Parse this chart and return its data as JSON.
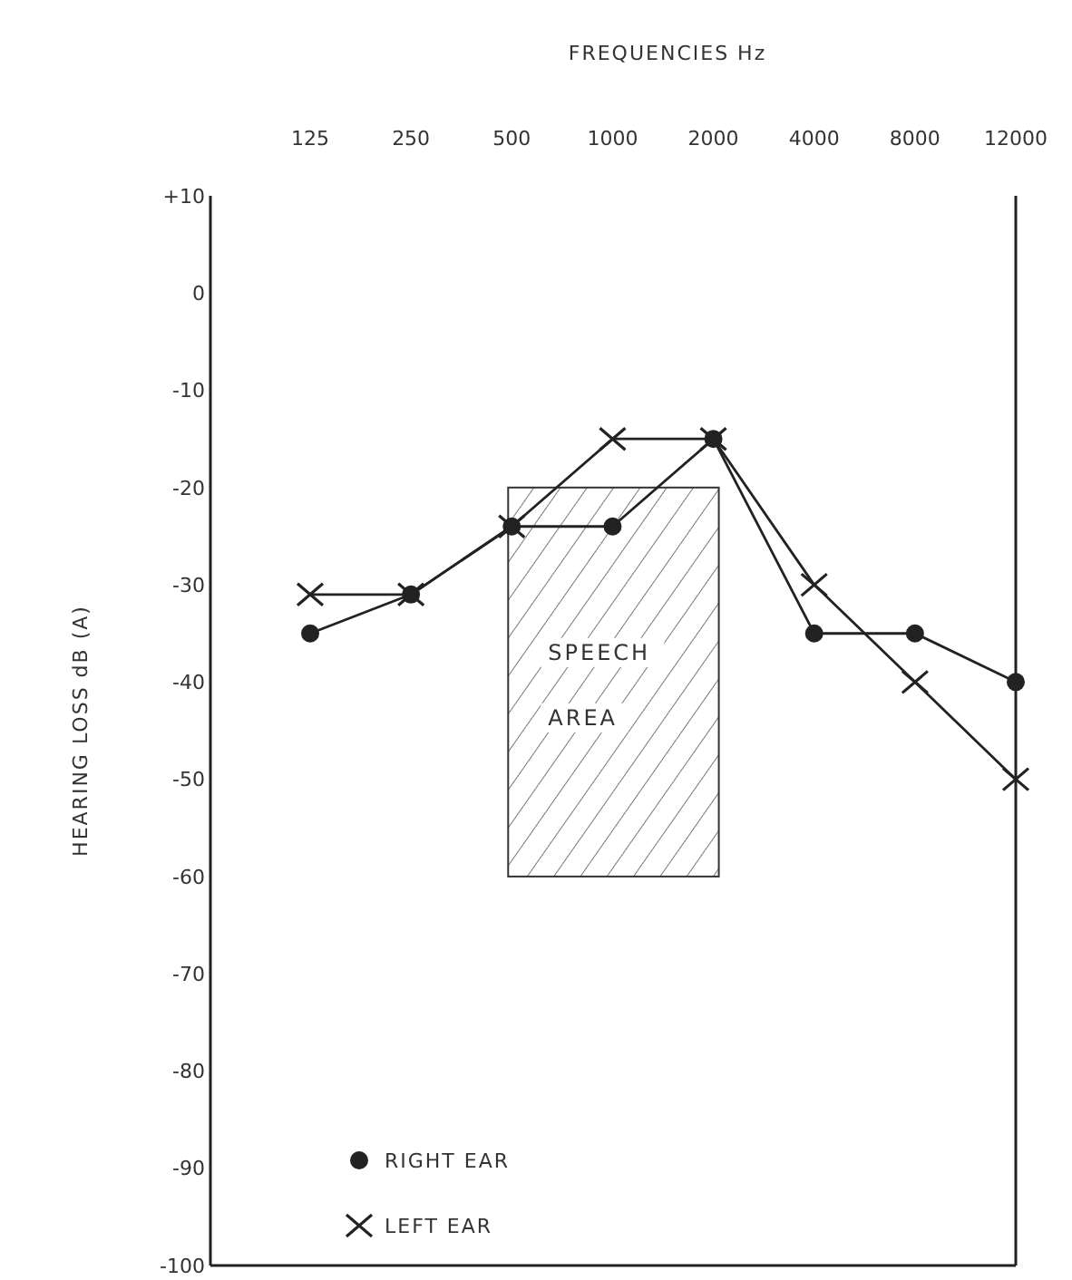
{
  "chart_data": {
    "type": "line",
    "xlabel": "FREQUENCIES Hz",
    "ylabel": "HEARING LOSS dB (A)",
    "categories": [
      "125",
      "250",
      "500",
      "1000",
      "2000",
      "4000",
      "8000",
      "12000"
    ],
    "series": [
      {
        "name": "RIGHT EAR",
        "color": "#222222",
        "marker": "circle",
        "values": [
          -35,
          -31,
          -24,
          -24,
          -15,
          -35,
          -35,
          -40
        ]
      },
      {
        "name": "LEFT EAR",
        "color": "#222222",
        "marker": "cross",
        "values": [
          -31,
          -31,
          -24,
          -15,
          -15,
          -30,
          -40,
          -50
        ]
      }
    ],
    "ylim": [
      -100,
      10
    ],
    "yticks": [
      {
        "value": 10,
        "label": "+10"
      },
      0,
      -10,
      -20,
      -30,
      -40,
      -50,
      -60,
      -70,
      -80,
      -90,
      -100
    ],
    "bands": [
      {
        "axis": "y",
        "from": -20,
        "to": -60,
        "label": "SPEECH AREA"
      }
    ],
    "grid": false,
    "legend": "bottom left",
    "line_style": "solid"
  }
}
